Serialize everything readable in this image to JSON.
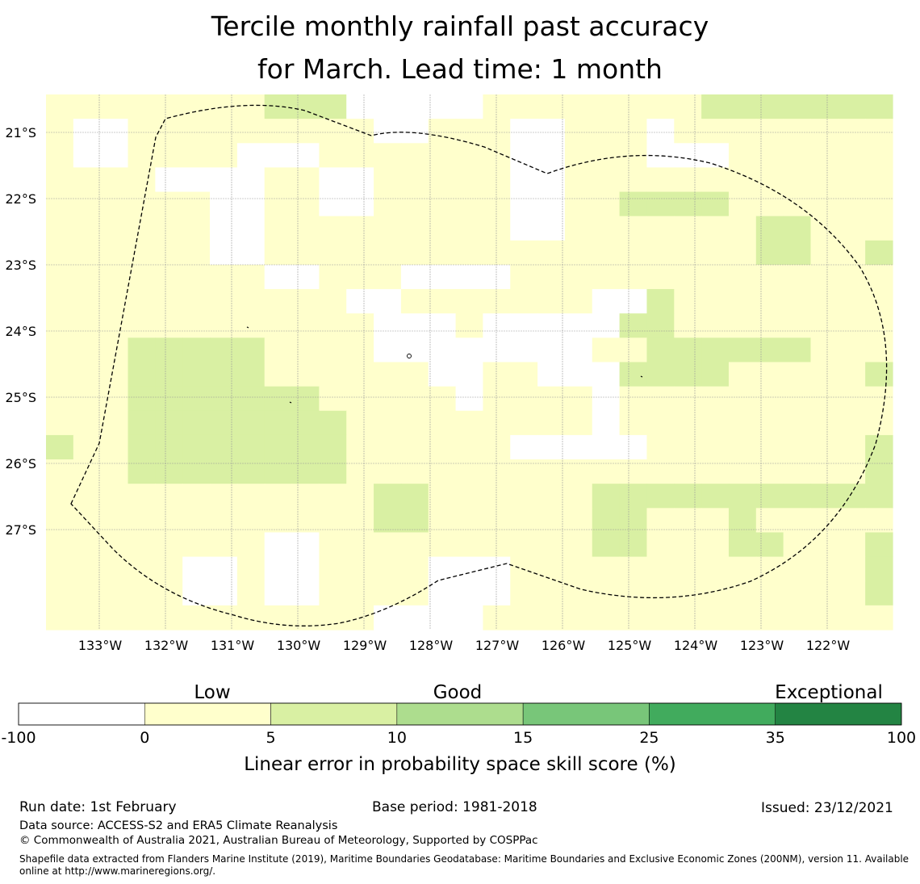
{
  "title": {
    "line1": "Tercile monthly rainfall past accuracy",
    "line2": "for March. Lead time: 1 month"
  },
  "map": {
    "lon_range": [
      -133.8,
      -121.0
    ],
    "lat_range": [
      -28.5,
      -20.4
    ],
    "cell_size_deg": 0.833,
    "x_ticks": [
      "133°W",
      "132°W",
      "131°W",
      "130°W",
      "129°W",
      "128°W",
      "127°W",
      "126°W",
      "125°W",
      "124°W",
      "123°W",
      "122°W"
    ],
    "x_tick_values": [
      -133,
      -132,
      -131,
      -130,
      -129,
      -128,
      -127,
      -126,
      -125,
      -124,
      -123,
      -122
    ],
    "y_ticks": [
      "21°S",
      "22°S",
      "23°S",
      "24°S",
      "25°S",
      "26°S",
      "27°S"
    ],
    "y_tick_values": [
      -21,
      -22,
      -23,
      -24,
      -25,
      -26,
      -27
    ],
    "grid_colors": [
      "#ffffff",
      "#ffffcc",
      "#d9f0a3"
    ],
    "grid_rows": [
      "1111111122200000111111112222222",
      "1001111111110011100111011111111",
      "1001111000111111100111000111111",
      "1111000011001111100111111111111",
      "1111110011001111100112222111111",
      "1111110011111111100111111122111",
      "1111110011111111111111111122112",
      "1111111100111000011111111111111",
      "1111111111100111111100211111111",
      "1111111111110001000002211111111",
      "1112222211110000000011222222111",
      "1112222211111100110002222111112",
      "1112222222111110111101111111111",
      "1112222222211111111101111111111",
      "2112222222211111100000111111112",
      "1112222222211111111111111111112",
      "1111111111112211111122222222222",
      "1111111111112211111122111211111",
      "1111111100111111111122111221112",
      "1111100100111100011111111111112",
      "1111100100111100011111111111112",
      "1111111111110000111111111111111"
    ]
  },
  "colorbar": {
    "boundaries": [
      "-100",
      "0",
      "5",
      "10",
      "15",
      "25",
      "35",
      "100"
    ],
    "colors": [
      "#ffffff",
      "#ffffcc",
      "#d9f0a3",
      "#addd8e",
      "#78c679",
      "#41ab5d",
      "#238443"
    ],
    "category_labels": [
      "Low",
      "Good",
      "Exceptional"
    ],
    "label": "Linear error in probability space skill score (%)"
  },
  "footer": {
    "run_date": "Run date: 1st February",
    "base_period": "Base period: 1981-2018",
    "issued": "Issued: 23/12/2021",
    "data_source": "Data source: ACCESS-S2 and ERA5 Climate Reanalysis",
    "copyright": "© Commonwealth of Australia 2021, Australian Bureau of Meteorology, Supported by COSPPac",
    "shapefile": "Shapefile data extracted from Flanders Marine Institute (2019), Maritime Boundaries Geodatabase: Maritime Boundaries and Exclusive Economic Zones (200NM), version 11. Available online at http://www.marineregions.org/."
  }
}
